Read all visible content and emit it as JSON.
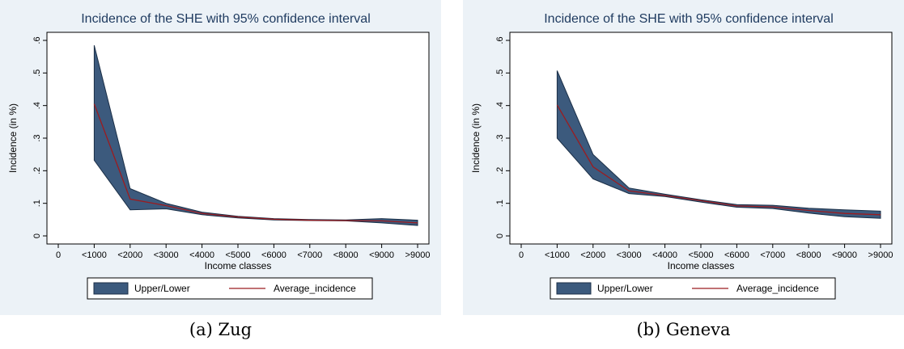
{
  "chart_data": [
    {
      "type": "area",
      "id": "a",
      "title": "Incidence of the SHE with 95% confidence interval",
      "xlabel": "Income classes",
      "ylabel": "Incidence (in %)",
      "caption": "(a)  Zug",
      "categories": [
        "0",
        "<1000",
        "<2000",
        "<3000",
        "<4000",
        "<5000",
        "<6000",
        "<7000",
        "<8000",
        "<9000",
        ">9000"
      ],
      "y_ticks": [
        "0",
        ".1",
        ".2",
        ".3",
        ".4",
        ".5",
        ".6"
      ],
      "ylim": [
        0,
        0.6
      ],
      "grid": false,
      "legend_position": "bottom",
      "series": [
        {
          "name": "Upper/Lower",
          "kind": "band",
          "color": "#3c5a7d",
          "upper": [
            null,
            0.585,
            0.145,
            0.1,
            0.073,
            0.06,
            0.053,
            0.05,
            0.049,
            0.053,
            0.048
          ],
          "lower": [
            null,
            0.232,
            0.08,
            0.083,
            0.065,
            0.055,
            0.049,
            0.047,
            0.046,
            0.04,
            0.032
          ]
        },
        {
          "name": "Average_incidence",
          "kind": "line",
          "color": "#9b1c20",
          "values": [
            null,
            0.405,
            0.113,
            0.093,
            0.069,
            0.058,
            0.051,
            0.048,
            0.047,
            0.046,
            0.04
          ]
        }
      ]
    },
    {
      "type": "area",
      "id": "b",
      "title": "Incidence of the SHE with 95% confidence interval",
      "xlabel": "Income classes",
      "ylabel": "Incidence (in %)",
      "caption": "(b)  Geneva",
      "categories": [
        "0",
        "<1000",
        "<2000",
        "<3000",
        "<4000",
        "<5000",
        "<6000",
        "<7000",
        "<8000",
        "<9000",
        ">9000"
      ],
      "y_ticks": [
        "0",
        ".1",
        ".2",
        ".3",
        ".4",
        ".5",
        ".6"
      ],
      "ylim": [
        0,
        0.6
      ],
      "grid": false,
      "legend_position": "bottom",
      "series": [
        {
          "name": "Upper/Lower",
          "kind": "band",
          "color": "#3c5a7d",
          "upper": [
            null,
            0.507,
            0.25,
            0.147,
            0.128,
            0.111,
            0.096,
            0.094,
            0.085,
            0.08,
            0.076
          ],
          "lower": [
            null,
            0.3,
            0.175,
            0.13,
            0.121,
            0.104,
            0.088,
            0.084,
            0.07,
            0.059,
            0.054
          ]
        },
        {
          "name": "Average_incidence",
          "kind": "line",
          "color": "#9b1c20",
          "values": [
            null,
            0.402,
            0.212,
            0.138,
            0.124,
            0.108,
            0.092,
            0.089,
            0.078,
            0.069,
            0.065
          ]
        }
      ]
    }
  ],
  "colors": {
    "outer_background": "#ecf2f7",
    "plot_background": "#ffffff",
    "title": "#1e3a5f",
    "band": "#3c5a7d",
    "line": "#9b1c20"
  }
}
